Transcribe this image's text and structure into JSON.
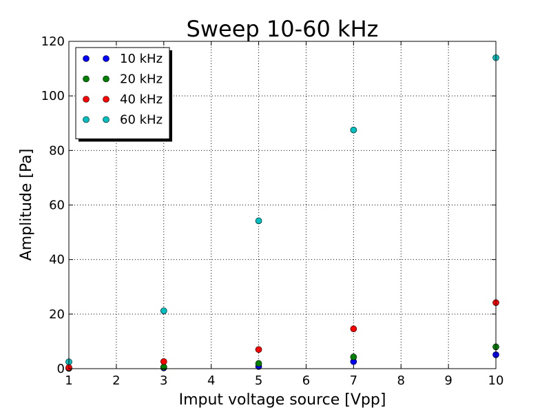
{
  "chart_data": {
    "type": "scatter",
    "title": "Sweep 10-60 kHz",
    "xlabel": "Imput voltage source [Vpp]",
    "ylabel": "Amplitude [Pa]",
    "xlim": [
      1,
      10
    ],
    "ylim": [
      0,
      120
    ],
    "xticks": [
      1,
      2,
      3,
      4,
      5,
      6,
      7,
      8,
      9,
      10
    ],
    "yticks": [
      0,
      20,
      40,
      60,
      80,
      100,
      120
    ],
    "grid": true,
    "legend_position": "upper-left",
    "series": [
      {
        "name": "10 kHz",
        "color": "#0000ff",
        "x": [
          1,
          3,
          5,
          7,
          10
        ],
        "y": [
          0.1,
          0.3,
          0.8,
          2.6,
          5.1
        ]
      },
      {
        "name": "20 kHz",
        "color": "#008000",
        "x": [
          1,
          3,
          5,
          7,
          10
        ],
        "y": [
          0.2,
          0.6,
          1.9,
          4.3,
          8.0
        ]
      },
      {
        "name": "40 kHz",
        "color": "#ff0000",
        "x": [
          1,
          3,
          5,
          7,
          10
        ],
        "y": [
          0.4,
          2.6,
          7.0,
          14.6,
          24.2
        ]
      },
      {
        "name": "60 kHz",
        "color": "#00bfbf",
        "x": [
          1,
          3,
          5,
          7,
          10
        ],
        "y": [
          2.5,
          21.2,
          54.2,
          87.5,
          114.0
        ]
      }
    ]
  }
}
